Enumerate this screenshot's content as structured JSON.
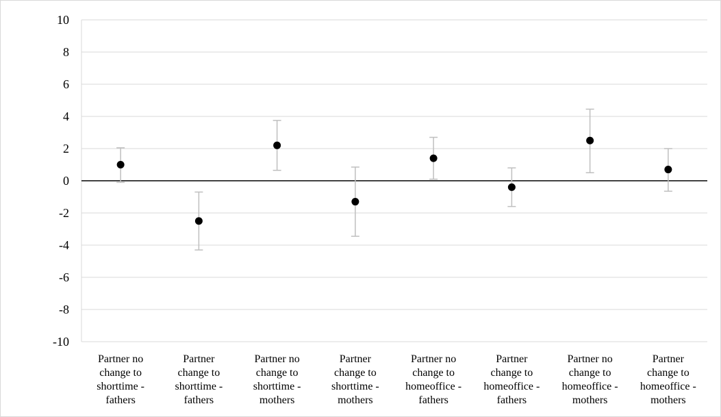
{
  "chart_data": {
    "type": "scatter",
    "title": "",
    "xlabel": "",
    "ylabel": "",
    "ylim": [
      -10,
      10
    ],
    "yticks": [
      10,
      8,
      6,
      4,
      2,
      0,
      -2,
      -4,
      -6,
      -8,
      -10
    ],
    "grid": true,
    "legend": "none",
    "categories": [
      "Partner no change to shorttime - fathers",
      "Partner change to shorttime - fathers",
      "Partner no change to shorttime - mothers",
      "Partner change to shorttime - mothers",
      "Partner no change to homeoffice - fathers",
      "Partner change to homeoffice - fathers",
      "Partner no change to homeoffice - mothers",
      "Partner change to homeoffice - mothers"
    ],
    "category_lines": [
      [
        "Partner no",
        "change to",
        "shorttime -",
        "fathers"
      ],
      [
        "Partner",
        "change to",
        "shorttime -",
        "fathers"
      ],
      [
        "Partner no",
        "change to",
        "shorttime -",
        "mothers"
      ],
      [
        "Partner",
        "change to",
        "shorttime -",
        "mothers"
      ],
      [
        "Partner no",
        "change to",
        "homeoffice -",
        "fathers"
      ],
      [
        "Partner",
        "change to",
        "homeoffice -",
        "fathers"
      ],
      [
        "Partner no",
        "change to",
        "homeoffice -",
        "mothers"
      ],
      [
        "Partner",
        "change to",
        "homeoffice -",
        "mothers"
      ]
    ],
    "series": [
      {
        "values": [
          1.0,
          -2.5,
          2.2,
          -1.3,
          1.4,
          -0.4,
          2.5,
          0.7
        ],
        "lower": [
          -0.1,
          -4.3,
          0.65,
          -3.45,
          0.1,
          -1.6,
          0.5,
          -0.65
        ],
        "upper": [
          2.05,
          -0.7,
          3.75,
          0.85,
          2.7,
          0.8,
          4.45,
          2.0
        ]
      }
    ],
    "colors": {
      "point": "#000000",
      "error_bar": "#bfbfbf",
      "grid": "#d9d9d9",
      "zero_line": "#000000",
      "axis_line": "#d9d9d9"
    }
  }
}
